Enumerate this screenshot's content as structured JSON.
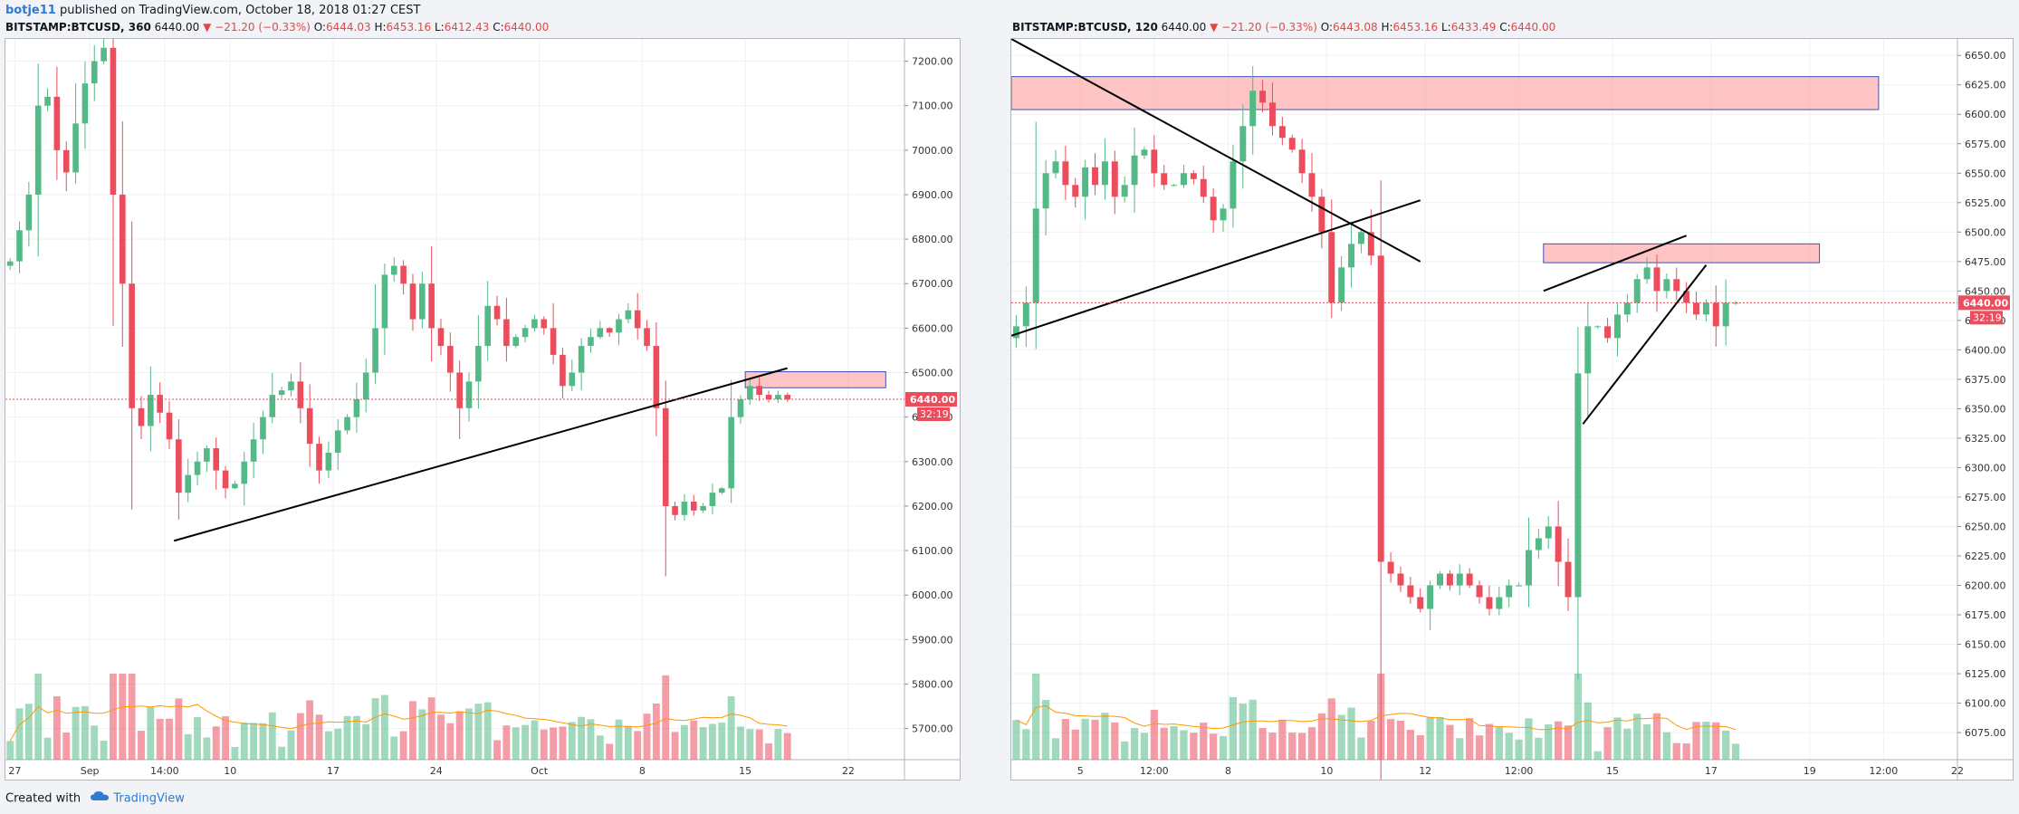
{
  "header": {
    "user": "botje11",
    "published": " published on TradingView.com, October 18, 2018 01:27 CEST"
  },
  "footer": {
    "created": "Created with",
    "brand": "TradingView"
  },
  "colors": {
    "up": "#53b987",
    "down": "#eb4d5c",
    "zone": "#ff9e9e",
    "zone_border": "#3f51b5",
    "ma": "#ff9800"
  },
  "chart_data": [
    {
      "type": "candlestick",
      "legend": {
        "symbol": "BITSTAMP:BTCUSD, 360",
        "price": "6440.00",
        "arrow": "▼",
        "change": "−21.20 (−0.33%)",
        "o_label": "O:",
        "o": "6444.03",
        "h_label": "H:",
        "h": "6453.16",
        "l_label": "L:",
        "l": "6412.43",
        "c_label": "C:",
        "c": "6440.00"
      },
      "y_ticks": [
        "7200.00",
        "7100.00",
        "7000.00",
        "6900.00",
        "6800.00",
        "6700.00",
        "6600.00",
        "6500.00",
        "6400.00",
        "6300.00",
        "6200.00",
        "6100.00",
        "6000.00",
        "5900.00",
        "5800.00",
        "5700.00"
      ],
      "y_tick_values": [
        7200,
        7100,
        7000,
        6900,
        6800,
        6700,
        6600,
        6500,
        6400,
        6300,
        6200,
        6100,
        6000,
        5900,
        5800,
        5700
      ],
      "ylim": [
        5630,
        7250
      ],
      "x_ticks": [
        "27",
        "Sep",
        "14:00",
        "10",
        "17",
        "24",
        "Oct",
        "8",
        "15",
        "22"
      ],
      "x_tick_positions": [
        0.5,
        8.5,
        16.5,
        23.5,
        34.5,
        45.5,
        56.5,
        67.5,
        78.5,
        89.5
      ],
      "num_bars": 96,
      "bars": 84,
      "close_series": [
        6750,
        6820,
        6900,
        7100,
        7120,
        7000,
        6950,
        7060,
        7150,
        7200,
        7230,
        6900,
        6700,
        6420,
        6380,
        6450,
        6410,
        6350,
        6230,
        6270,
        6300,
        6330,
        6280,
        6240,
        6250,
        6300,
        6350,
        6400,
        6450,
        6460,
        6480,
        6420,
        6340,
        6280,
        6320,
        6370,
        6400,
        6440,
        6500,
        6600,
        6720,
        6740,
        6700,
        6620,
        6700,
        6600,
        6560,
        6500,
        6420,
        6480,
        6560,
        6650,
        6620,
        6560,
        6580,
        6600,
        6620,
        6600,
        6540,
        6470,
        6500,
        6560,
        6580,
        6600,
        6590,
        6620,
        6640,
        6600,
        6560,
        6420,
        6200,
        6180,
        6210,
        6190,
        6200,
        6230,
        6240,
        6400,
        6440,
        6470,
        6450,
        6440,
        6450,
        6440
      ],
      "zone": {
        "from_bar": 78.5,
        "to_bar": 93.5,
        "low": 6466,
        "high": 6502
      },
      "trendline": {
        "from": [
          17.5,
          6122
        ],
        "to": [
          83,
          6510
        ]
      },
      "last_price": {
        "label": "6440.00",
        "value": 6440,
        "timer": "32:19"
      }
    },
    {
      "type": "candlestick",
      "legend": {
        "symbol": "BITSTAMP:BTCUSD, 120",
        "price": "6440.00",
        "arrow": "▼",
        "change": "−21.20 (−0.33%)",
        "o_label": "O:",
        "o": "6443.08",
        "h_label": "H:",
        "h": "6453.16",
        "l_label": "L:",
        "l": "6433.49",
        "c_label": "C:",
        "c": "6440.00"
      },
      "y_ticks": [
        "6650.00",
        "6625.00",
        "6600.00",
        "6575.00",
        "6550.00",
        "6525.00",
        "6500.00",
        "6475.00",
        "6450.00",
        "6425.00",
        "6400.00",
        "6375.00",
        "6350.00",
        "6325.00",
        "6300.00",
        "6275.00",
        "6250.00",
        "6225.00",
        "6200.00",
        "6175.00",
        "6150.00",
        "6125.00",
        "6100.00",
        "6075.00"
      ],
      "y_tick_values": [
        6650,
        6625,
        6600,
        6575,
        6550,
        6525,
        6500,
        6475,
        6450,
        6425,
        6400,
        6375,
        6350,
        6325,
        6300,
        6275,
        6250,
        6225,
        6200,
        6175,
        6150,
        6125,
        6100,
        6075
      ],
      "ylim": [
        6052,
        6664
      ],
      "x_ticks": [
        "5",
        "12:00",
        "8",
        "10",
        "12",
        "12:00",
        "15",
        "17",
        "19",
        "12:00",
        "22"
      ],
      "x_tick_positions": [
        6.5,
        14,
        21.5,
        31.5,
        41.5,
        51,
        60.5,
        70.5,
        80.5,
        88,
        95.5
      ],
      "num_bars": 96,
      "bars": 74,
      "close_series": [
        6420,
        6440,
        6520,
        6550,
        6560,
        6540,
        6530,
        6555,
        6540,
        6560,
        6530,
        6540,
        6565,
        6570,
        6550,
        6540,
        6540,
        6550,
        6545,
        6530,
        6510,
        6520,
        6560,
        6590,
        6620,
        6610,
        6590,
        6580,
        6570,
        6550,
        6530,
        6500,
        6440,
        6470,
        6490,
        6500,
        6480,
        6220,
        6210,
        6200,
        6190,
        6180,
        6200,
        6210,
        6200,
        6210,
        6200,
        6190,
        6180,
        6190,
        6200,
        6200,
        6230,
        6240,
        6250,
        6220,
        6190,
        6380,
        6420,
        6420,
        6410,
        6430,
        6440,
        6460,
        6470,
        6450,
        6460,
        6450,
        6440,
        6430,
        6440,
        6420,
        6440,
        6440
      ],
      "zone_top": {
        "from_bar": -0.5,
        "to_bar": 87.5,
        "low": 6604,
        "high": 6632
      },
      "zone_mid": {
        "from_bar": 53.5,
        "to_bar": 81.5,
        "low": 6474,
        "high": 6490
      },
      "trendlines": [
        {
          "from": [
            -0.5,
            6664
          ],
          "to": [
            41,
            6475
          ]
        },
        {
          "from": [
            -0.5,
            6412
          ],
          "to": [
            41,
            6527
          ]
        },
        {
          "from": [
            53.5,
            6450
          ],
          "to": [
            68,
            6497
          ]
        },
        {
          "from": [
            57.5,
            6337
          ],
          "to": [
            70,
            6472
          ]
        }
      ],
      "last_price": {
        "label": "6440.00",
        "value": 6440,
        "timer": "32:19"
      }
    }
  ]
}
